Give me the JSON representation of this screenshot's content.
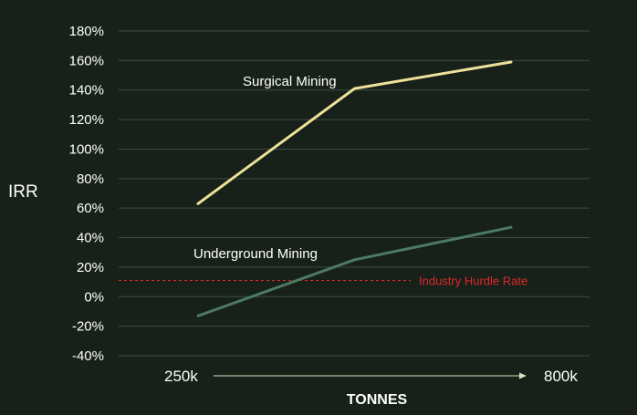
{
  "chart_data": {
    "type": "line",
    "ylabel": "IRR",
    "xlabel": "TONNES",
    "x_start_label": "250k",
    "x_end_label": "800k",
    "x": [
      250,
      525,
      800
    ],
    "ylim": [
      -40,
      180
    ],
    "yticks": [
      -40,
      -20,
      0,
      20,
      40,
      60,
      80,
      100,
      120,
      140,
      160,
      180
    ],
    "ytick_labels": [
      "-40%",
      "-20%",
      "0%",
      "20%",
      "40%",
      "60%",
      "80%",
      "100%",
      "120%",
      "140%",
      "160%",
      "180%"
    ],
    "grid": "horizontal",
    "series": [
      {
        "name": "Surgical Mining",
        "values": [
          63,
          141,
          159
        ],
        "color": "#ede19a"
      },
      {
        "name": "Underground Mining",
        "values": [
          -13,
          25,
          47
        ],
        "color": "#4d7a63"
      }
    ],
    "reference_line": {
      "name": "Industry Hurdle Rate",
      "value": 11,
      "color": "#e0282b"
    }
  }
}
